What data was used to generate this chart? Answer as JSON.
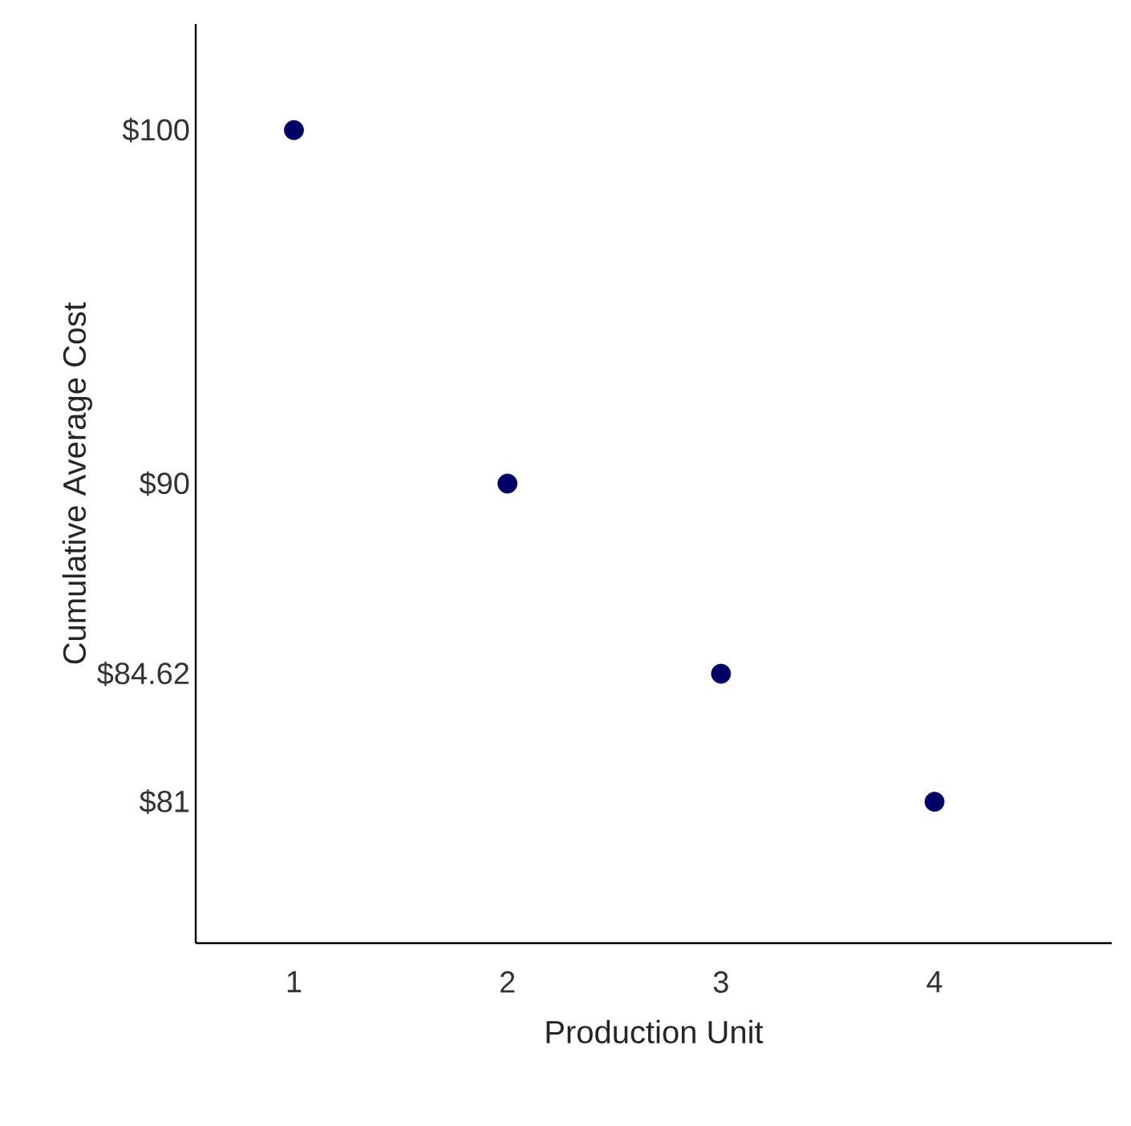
{
  "chart_data": {
    "type": "scatter",
    "xlabel": "Production Unit",
    "ylabel": "Cumulative Average Cost",
    "categories": [
      "1",
      "2",
      "3",
      "4"
    ],
    "values": [
      100,
      90,
      84.62,
      81
    ],
    "color": "#000066",
    "marker": "circle",
    "ylim": [
      77,
      103
    ],
    "yticks": [
      {
        "value": 81,
        "label": "$81"
      },
      {
        "value": 84.62,
        "label": "$84.62"
      },
      {
        "value": 90,
        "label": "$90"
      },
      {
        "value": 100,
        "label": "$100"
      }
    ]
  }
}
